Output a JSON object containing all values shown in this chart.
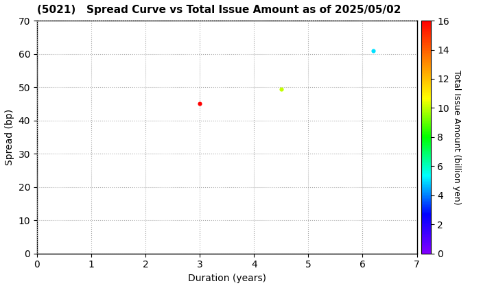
{
  "title": "(5021)   Spread Curve vs Total Issue Amount as of 2025/05/02",
  "xlabel": "Duration (years)",
  "ylabel": "Spread (bp)",
  "colorbar_label": "Total Issue Amount (billion yen)",
  "xlim": [
    0,
    7
  ],
  "ylim": [
    0,
    70
  ],
  "xticks": [
    0,
    1,
    2,
    3,
    4,
    5,
    6,
    7
  ],
  "yticks": [
    0,
    10,
    20,
    30,
    40,
    50,
    60,
    70
  ],
  "colorbar_min": 0,
  "colorbar_max": 16,
  "colorbar_ticks": [
    0,
    2,
    4,
    6,
    8,
    10,
    12,
    14,
    16
  ],
  "points": [
    {
      "duration": 3.0,
      "spread": 45.0,
      "amount": 16.0
    },
    {
      "duration": 4.5,
      "spread": 49.5,
      "amount": 10.0
    },
    {
      "duration": 6.2,
      "spread": 61.0,
      "amount": 5.0
    }
  ],
  "marker_size": 20,
  "cmap": "gist_rainbow_r",
  "background_color": "#ffffff",
  "grid_color": "#aaaaaa",
  "grid_style": "dotted",
  "title_fontsize": 11,
  "label_fontsize": 10,
  "tick_fontsize": 10,
  "colorbar_label_fontsize": 9,
  "figsize": [
    7.2,
    4.2
  ],
  "dpi": 100
}
